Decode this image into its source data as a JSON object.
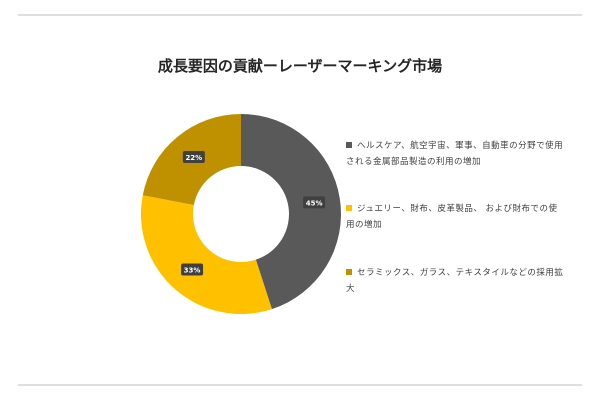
{
  "chart_data": {
    "type": "donut",
    "title": "成長要因の貢献ーレーザーマーキング市場",
    "categories": [
      "ヘルスケア、航空宇宙、軍事、自動車の分野で使用される金属部品製造の利用の増加",
      "ジュエリー、財布、皮革製品、 および財布での使用の増加",
      "セラミックス、ガラス、テキスタイルなどの採用拡大"
    ],
    "values": [
      45,
      33,
      22
    ],
    "value_labels": [
      "45%",
      "33%",
      "22%"
    ],
    "colors": [
      "#595959",
      "#ffc000",
      "#bf9000"
    ]
  }
}
